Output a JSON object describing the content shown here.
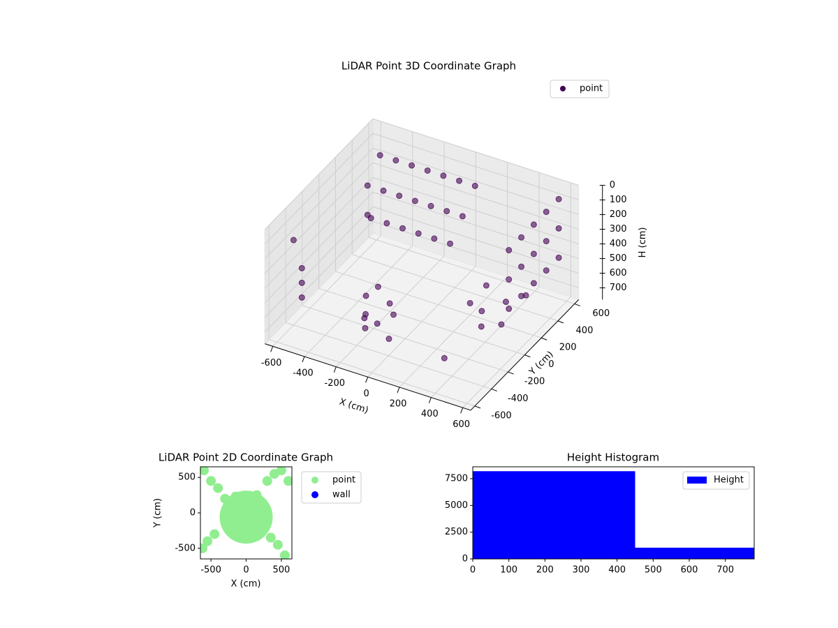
{
  "chart_data": [
    {
      "type": "scatter3d",
      "title": "LiDAR Point 3D Coordinate Graph",
      "x_label": "X (cm)",
      "y_label": "Y (cm)",
      "z_label": "H (cm)",
      "xlim": [
        -650,
        650
      ],
      "ylim": [
        -650,
        650
      ],
      "zlim": [
        0,
        780
      ],
      "z_inverted": true,
      "xticks": [
        -600,
        -400,
        -200,
        0,
        200,
        400,
        600
      ],
      "yticks": [
        -600,
        -400,
        -200,
        0,
        200,
        400,
        600
      ],
      "zticks": [
        0,
        100,
        200,
        300,
        400,
        500,
        600,
        700
      ],
      "grid": true,
      "legend": "upper right",
      "series": [
        {
          "name": "point",
          "color": "#440154",
          "x": [
            -500,
            -400,
            -300,
            -200,
            -100,
            0,
            100,
            -500,
            -400,
            -300,
            -200,
            -100,
            0,
            100,
            -400,
            -300,
            -200,
            -100,
            0,
            100,
            550,
            550,
            550,
            550,
            550,
            550,
            550,
            550,
            550,
            550,
            550,
            550,
            550,
            550,
            550,
            -300,
            -250,
            -200,
            -150,
            -100,
            -50,
            -250,
            -150,
            200,
            300,
            400,
            450,
            350,
            250,
            500,
            -600,
            -100,
            300,
            -500,
            -600,
            -600,
            -600
          ],
          "y": [
            450,
            450,
            450,
            450,
            450,
            450,
            450,
            300,
            300,
            300,
            300,
            300,
            300,
            300,
            150,
            150,
            150,
            150,
            150,
            150,
            0,
            150,
            300,
            450,
            600,
            0,
            150,
            300,
            450,
            600,
            0,
            150,
            300,
            450,
            600,
            -100,
            -200,
            -300,
            -250,
            -150,
            -300,
            -50,
            -100,
            200,
            150,
            250,
            100,
            50,
            300,
            300,
            -400,
            -500,
            -300,
            300,
            -300,
            -300,
            -300
          ],
          "z": [
            80,
            80,
            80,
            80,
            80,
            80,
            80,
            200,
            200,
            200,
            200,
            200,
            200,
            200,
            300,
            300,
            300,
            300,
            300,
            300,
            100,
            100,
            100,
            100,
            100,
            300,
            300,
            300,
            300,
            300,
            500,
            500,
            500,
            500,
            500,
            650,
            700,
            720,
            700,
            680,
            740,
            600,
            650,
            700,
            690,
            650,
            700,
            720,
            620,
            600,
            200,
            500,
            750,
            400,
            450,
            550,
            650
          ]
        }
      ]
    },
    {
      "type": "scatter",
      "title": "LiDAR Point 2D Coordinate Graph",
      "x_label": "X (cm)",
      "y_label": "Y (cm)",
      "xlim": [
        -650,
        650
      ],
      "ylim": [
        -650,
        650
      ],
      "xticks": [
        -500,
        0,
        500
      ],
      "yticks": [
        -500,
        0,
        500
      ],
      "legend": "outside upper left",
      "series": [
        {
          "name": "point",
          "color": "#90ee90",
          "x": [
            0,
            100,
            200,
            -100,
            -200,
            0,
            100,
            -100,
            200,
            -200,
            0,
            150,
            -150,
            250,
            -250,
            -400,
            -500,
            -600,
            -300,
            350,
            450,
            550,
            300,
            400,
            500,
            600,
            -550,
            -620,
            -450
          ],
          "y": [
            0,
            100,
            0,
            100,
            0,
            -200,
            -250,
            -250,
            -150,
            -150,
            200,
            250,
            230,
            100,
            -50,
            350,
            450,
            600,
            200,
            -350,
            -450,
            -600,
            450,
            550,
            600,
            450,
            -400,
            -500,
            -300
          ]
        },
        {
          "name": "wall",
          "color": "#0000ff",
          "x": [],
          "y": []
        }
      ]
    },
    {
      "type": "histogram",
      "title": "Height Histogram",
      "bins": [
        0,
        450,
        780
      ],
      "values": [
        8200,
        1050
      ],
      "xlim": [
        0,
        780
      ],
      "ylim": [
        0,
        8610
      ],
      "xticks": [
        0,
        100,
        200,
        300,
        400,
        500,
        600,
        700
      ],
      "yticks": [
        0,
        2500,
        5000,
        7500
      ],
      "series_name": "Height",
      "color": "#0000ff",
      "legend": "upper right"
    }
  ]
}
